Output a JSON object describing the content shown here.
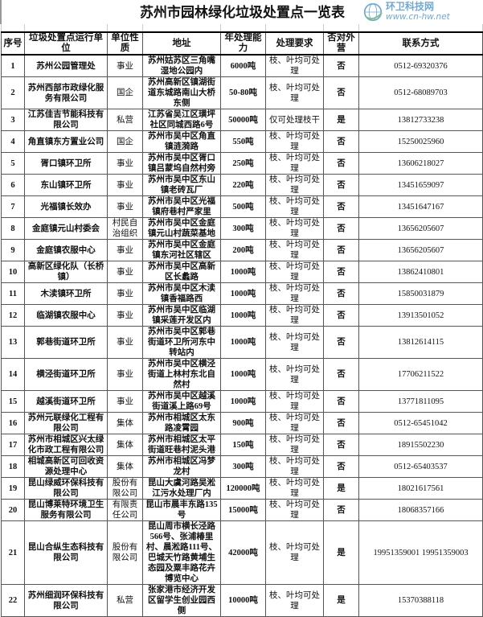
{
  "title": "苏州市园林绿化垃圾处置点一览表",
  "columns": [
    "序号",
    "垃圾处置点运行单位",
    "单位性质",
    "地址",
    "年处理能力",
    "处理要求",
    "否对外营",
    "联系方式"
  ],
  "rows": [
    [
      "1",
      "苏州公园管理处",
      "事业",
      "苏州姑苏区三角嘴湿地公园内",
      "6000吨",
      "枝、叶均可处理",
      "否",
      "0512-69320376"
    ],
    [
      "2",
      "苏州西部市政绿化服务有限公司",
      "国企",
      "苏州高新区镇湖街道东城路南山大桥东侧",
      "50-80吨",
      "枝、叶均可处理",
      "否",
      "0512-68089703"
    ],
    [
      "3",
      "江苏佳吉节能科技有限公司",
      "私营",
      "江苏省吴江区璜坪社区同城西路6号",
      "50000吨",
      "仅可处理枝干",
      "是",
      "13812733238"
    ],
    [
      "4",
      "角直镇东方置业公司",
      "国企",
      "苏州市吴中区角直镇涟漪路",
      "550吨",
      "枝、叶均可处理",
      "否",
      "15250025960"
    ],
    [
      "5",
      "胥口镇环卫所",
      "事业",
      "苏州市吴中区胥口镇吕蒙坞自然村旁",
      "250吨",
      "枝、叶均可处理",
      "否",
      "13606218027"
    ],
    [
      "6",
      "东山镇环卫所",
      "事业",
      "苏州市吴中区东山镇老砖瓦厂",
      "220吨",
      "枝、叶均可处理",
      "否",
      "13451659097"
    ],
    [
      "7",
      "光福镇长效办",
      "事业",
      "苏州市吴中区光福镇府巷村严家里",
      "500吨",
      "枝、叶均可处理",
      "否",
      "13451647167"
    ],
    [
      "8",
      "金庭镇元山村委会",
      "村民自治组织",
      "苏州市吴中区金庭镇元山村蔬菜基地",
      "300吨",
      "枝、叶均可处理",
      "否",
      "13656205607"
    ],
    [
      "9",
      "金庭镇农服中心",
      "事业",
      "苏州市吴中区金庭镇东河社区辖区",
      "200吨",
      "枝、叶均可处理",
      "否",
      "13656205607"
    ],
    [
      "10",
      "高新区绿化队（长桥镇）",
      "事业",
      "苏州市吴中区高新区长蠡路",
      "1000吨",
      "枝、叶均可处理",
      "否",
      "13862410801"
    ],
    [
      "11",
      "木渎镇环卫所",
      "事业",
      "苏州市吴中区木渎镇香福路西",
      "1000吨",
      "枝、叶均可处理",
      "否",
      "15850031879"
    ],
    [
      "12",
      "临湖镇农服中心",
      "事业",
      "苏州市吴中区临湖镇采莲开发区内",
      "1000吨",
      "枝、叶均可处理",
      "否",
      "13913501052"
    ],
    [
      "13",
      "郭巷街道环卫所",
      "事业",
      "苏州市吴中区郭巷街道环卫所河东中转站内",
      "1000吨",
      "枝、叶均可处理",
      "否",
      "13812614115"
    ],
    [
      "14",
      "横泾街道环卫所",
      "事业",
      "苏州市吴中区横泾街道上林村东北自然村",
      "1000吨",
      "枝、叶均可处理",
      "否",
      "17706211522"
    ],
    [
      "15",
      "越溪街道环卫所",
      "事业",
      "苏州市吴中区越溪街道溪上路69号",
      "1000吨",
      "枝、叶均可处理",
      "否",
      "13771811095"
    ],
    [
      "16",
      "苏州元联绿化工程有限公司",
      "集体",
      "苏州市相城区太东路凌霄园",
      "900吨",
      "枝、叶均可处理",
      "否",
      "0512-65451042"
    ],
    [
      "17",
      "苏州市相城区兴太绿化市政工程有限公司",
      "集体",
      "苏州市相城区太平街道旺巷村泥头港",
      "150吨",
      "枝、叶均可处理",
      "否",
      "18915502230"
    ],
    [
      "18",
      "相城高新区可回收资源处理中心",
      "集体",
      "苏州市相城区冯梦龙村",
      "300吨",
      "枝、叶均可处理",
      "否",
      "0512-65403537"
    ],
    [
      "19",
      "昆山绿威环保科技有限公司",
      "股份有限公司",
      "昆山大虞河路吴淞江污水处理厂内",
      "120000吨",
      "枝、叶均可处理",
      "是",
      "18021617561"
    ],
    [
      "20",
      "昆山博莱特环境卫生服务有限公司",
      "有限责任公司",
      "昆山市晨丰东路135号",
      "15000吨",
      "枝、叶均可处理",
      "否",
      "18068357166"
    ],
    [
      "21",
      "昆山合纵生态科技有限公司",
      "股份有限公司",
      "昆山周市横长泾路566号、张浦椿里村、晨淞路111号、巴城天竹路黄埔生态园及粟丰路花卉博览中心",
      "42000吨",
      "枝、叶均可处理",
      "是",
      "19951359001 19951359003"
    ],
    [
      "22",
      "苏州细润环保科技有限公司",
      "私营",
      "张家港市经济开发区留学生创业园西侧",
      "10000吨",
      "枝、叶均可处理",
      "是",
      "15370388118"
    ]
  ],
  "watermark": {
    "name": "环卫科技网",
    "url": "www.cn-hw.net",
    "color": "#6fa8d6"
  }
}
